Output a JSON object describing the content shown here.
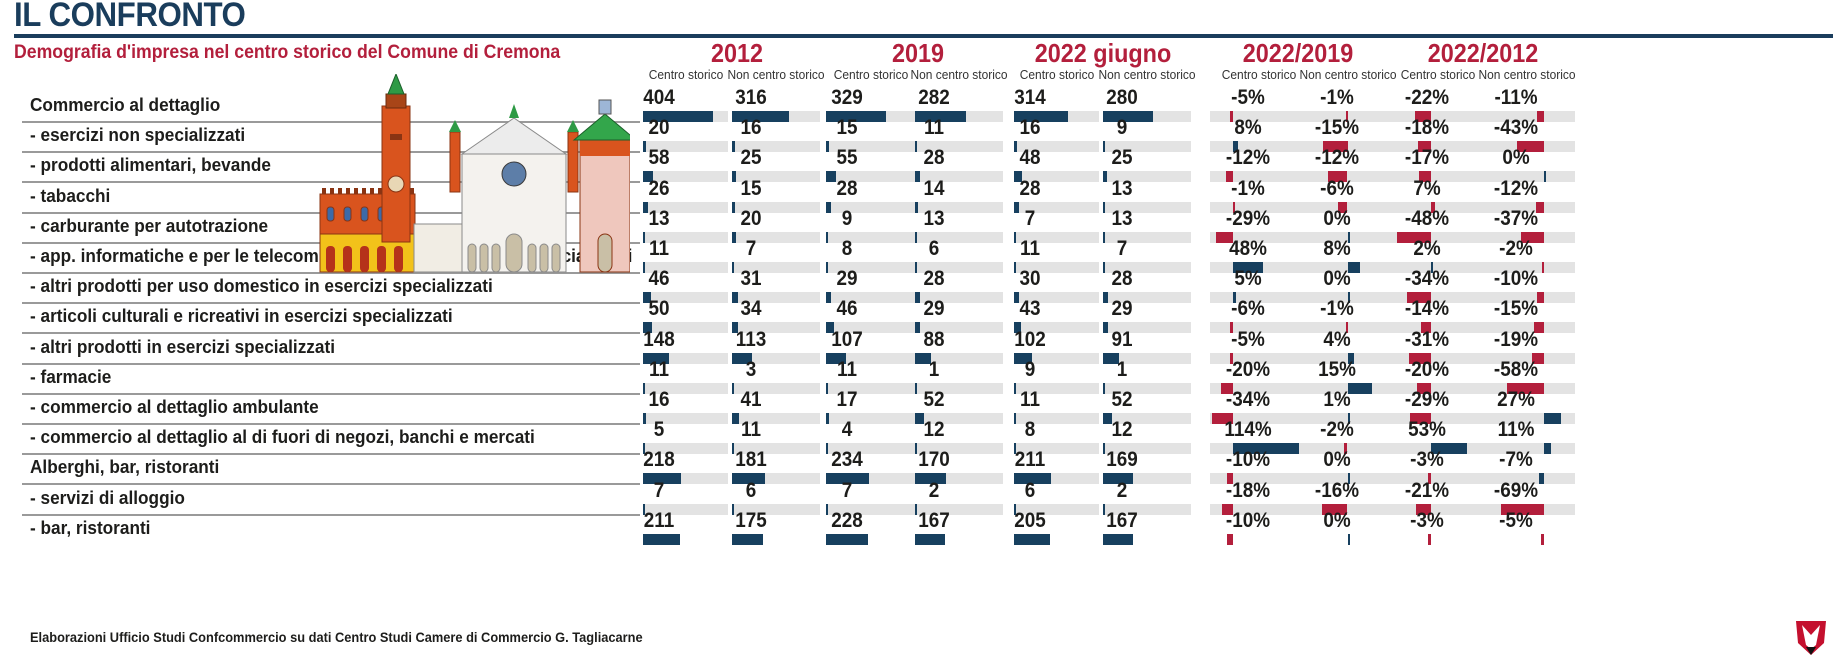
{
  "header": {
    "title": "IL CONFRONTO",
    "subtitle": "Demografia d'impresa nel centro storico del Comune di Cremona"
  },
  "colors": {
    "navy": "#1a3d5c",
    "accent_red": "#b31f3c",
    "bar_positive": "#17405f",
    "bar_negative": "#b31f3c",
    "track": "#e3e3e3"
  },
  "footer": {
    "source": "Elaborazioni Ufficio Studi Confcommercio su dati Centro Studi Camere di Commercio G. Tagliacarne"
  },
  "illustration": {
    "icon": "cremona-skyline-illustration"
  },
  "logo": {
    "icon": "publisher-logo-icon"
  },
  "chart_data": {
    "type": "table",
    "title": "IL CONFRONTO",
    "subtitle": "Demografia d'impresa nel centro storico del Comune di Cremona",
    "groups": [
      "2012",
      "2019",
      "2022 giugno",
      "2022/2019",
      "2022/2012"
    ],
    "subcolumns": [
      "Centro storico",
      "Non centro storico"
    ],
    "columns": [
      {
        "group": "2012",
        "sub": "Centro storico",
        "kind": "count",
        "range": [
          0,
          490
        ]
      },
      {
        "group": "2012",
        "sub": "Non centro storico",
        "kind": "count",
        "range": [
          0,
          490
        ]
      },
      {
        "group": "2019",
        "sub": "Centro storico",
        "kind": "count",
        "range": [
          0,
          490
        ]
      },
      {
        "group": "2019",
        "sub": "Non centro storico",
        "kind": "count",
        "range": [
          0,
          490
        ]
      },
      {
        "group": "2022 giugno",
        "sub": "Centro storico",
        "kind": "count",
        "range": [
          0,
          490
        ]
      },
      {
        "group": "2022 giugno",
        "sub": "Non centro storico",
        "kind": "count",
        "range": [
          0,
          490
        ]
      },
      {
        "group": "2022/2019",
        "sub": "Centro storico",
        "kind": "percent",
        "range": [
          -38,
          120
        ]
      },
      {
        "group": "2022/2019",
        "sub": "Non centro storico",
        "kind": "percent",
        "range": [
          -30,
          30
        ]
      },
      {
        "group": "2022/2012",
        "sub": "Centro storico",
        "kind": "percent",
        "range": [
          -60,
          80
        ]
      },
      {
        "group": "2022/2012",
        "sub": "Non centro storico",
        "kind": "percent",
        "range": [
          -105,
          50
        ]
      }
    ],
    "rows": [
      {
        "label": "Commercio al dettaglio",
        "bold": true,
        "values": [
          404,
          316,
          329,
          282,
          314,
          280,
          -5,
          -1,
          -22,
          -11
        ]
      },
      {
        "label": "- esercizi non specializzati",
        "bold": false,
        "values": [
          20,
          16,
          15,
          11,
          16,
          9,
          8,
          -15,
          -18,
          -43
        ]
      },
      {
        "label": "- prodotti alimentari, bevande",
        "bold": false,
        "values": [
          58,
          25,
          55,
          28,
          48,
          25,
          -12,
          -12,
          -17,
          0
        ]
      },
      {
        "label": "- tabacchi",
        "bold": false,
        "values": [
          26,
          15,
          28,
          14,
          28,
          13,
          -1,
          -6,
          7,
          -12
        ],
        "bar_color_override": {
          "8": "negative"
        }
      },
      {
        "label": "- carburante per autotrazione",
        "bold": false,
        "values": [
          13,
          20,
          9,
          13,
          7,
          13,
          -29,
          0,
          -48,
          -37
        ]
      },
      {
        "label": "- app. informatiche e per le telecomunicazioni (ict) in esercizi specializzati",
        "bold": false,
        "values": [
          11,
          7,
          8,
          6,
          11,
          7,
          48,
          8,
          2,
          -2
        ]
      },
      {
        "label": "- altri prodotti per uso domestico in esercizi specializzati",
        "bold": false,
        "values": [
          46,
          31,
          29,
          28,
          30,
          28,
          5,
          0,
          -34,
          -10
        ]
      },
      {
        "label": "- articoli culturali e ricreativi in esercizi specializzati",
        "bold": false,
        "values": [
          50,
          34,
          46,
          29,
          43,
          29,
          -6,
          -1,
          -14,
          -15
        ]
      },
      {
        "label": "- altri prodotti in esercizi specializzati",
        "bold": false,
        "values": [
          148,
          113,
          107,
          88,
          102,
          91,
          -5,
          4,
          -31,
          -19
        ]
      },
      {
        "label": "- farmacie",
        "bold": false,
        "values": [
          11,
          3,
          11,
          1,
          9,
          1,
          -20,
          15,
          -20,
          -58
        ]
      },
      {
        "label": "- commercio al dettaglio ambulante",
        "bold": false,
        "values": [
          16,
          41,
          17,
          52,
          11,
          52,
          -34,
          1,
          -29,
          27
        ]
      },
      {
        "label": "- commercio al dettaglio al di fuori di negozi, banchi e mercati",
        "bold": false,
        "values": [
          5,
          11,
          4,
          12,
          8,
          12,
          114,
          -2,
          53,
          11
        ]
      },
      {
        "label": "Alberghi, bar, ristoranti",
        "bold": true,
        "values": [
          218,
          181,
          234,
          170,
          211,
          169,
          -10,
          0,
          -3,
          -7
        ],
        "bar_color_override": {
          "9": "positive"
        }
      },
      {
        "label": "- servizi di alloggio",
        "bold": false,
        "values": [
          7,
          6,
          7,
          2,
          6,
          2,
          -18,
          -16,
          -21,
          -69
        ]
      },
      {
        "label": "- bar, ristoranti",
        "bold": false,
        "values": [
          211,
          175,
          228,
          167,
          205,
          167,
          -10,
          0,
          -3,
          -5
        ],
        "no_track": true
      }
    ],
    "units": {
      "count": "",
      "percent": "%"
    }
  }
}
